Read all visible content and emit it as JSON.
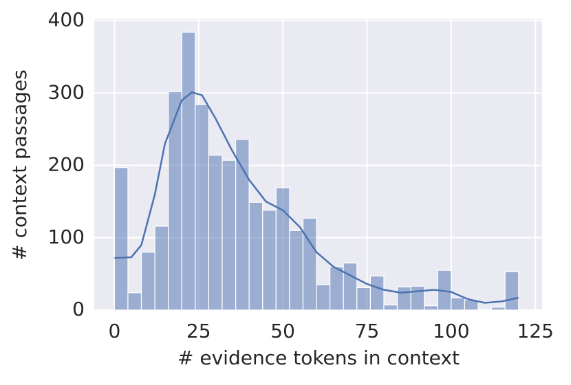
{
  "chart_data": {
    "type": "histogram",
    "xlabel": "# evidence tokens in context",
    "ylabel": "# context passages",
    "bins": [
      0,
      4,
      8,
      12,
      16,
      20,
      24,
      28,
      32,
      36,
      40,
      44,
      48,
      52,
      56,
      60,
      64,
      68,
      72,
      76,
      80,
      84,
      88,
      92,
      96,
      100,
      104,
      108,
      112,
      116,
      120
    ],
    "values": [
      197,
      24,
      80,
      116,
      302,
      384,
      284,
      214,
      207,
      236,
      149,
      138,
      169,
      110,
      127,
      35,
      60,
      65,
      31,
      47,
      7,
      32,
      33,
      6,
      55,
      17,
      14,
      0,
      4,
      53
    ],
    "color": "#4c72b0",
    "kde": {
      "x": [
        0,
        5,
        8,
        12,
        15,
        20,
        23,
        26,
        30,
        35,
        40,
        45,
        50,
        55,
        60,
        65,
        70,
        75,
        80,
        85,
        90,
        95,
        100,
        105,
        110,
        115,
        120
      ],
      "values": [
        72,
        73,
        90,
        160,
        230,
        290,
        301,
        297,
        265,
        220,
        180,
        150,
        138,
        115,
        80,
        60,
        48,
        36,
        28,
        24,
        26,
        28,
        25,
        15,
        10,
        12,
        17
      ],
      "color": "#4c72b0"
    },
    "xlim": [
      -6,
      127
    ],
    "ylim": [
      0,
      402
    ],
    "xticks": [
      0,
      25,
      50,
      75,
      100,
      125
    ],
    "yticks": [
      0,
      100,
      200,
      300,
      400
    ],
    "grid": true
  }
}
